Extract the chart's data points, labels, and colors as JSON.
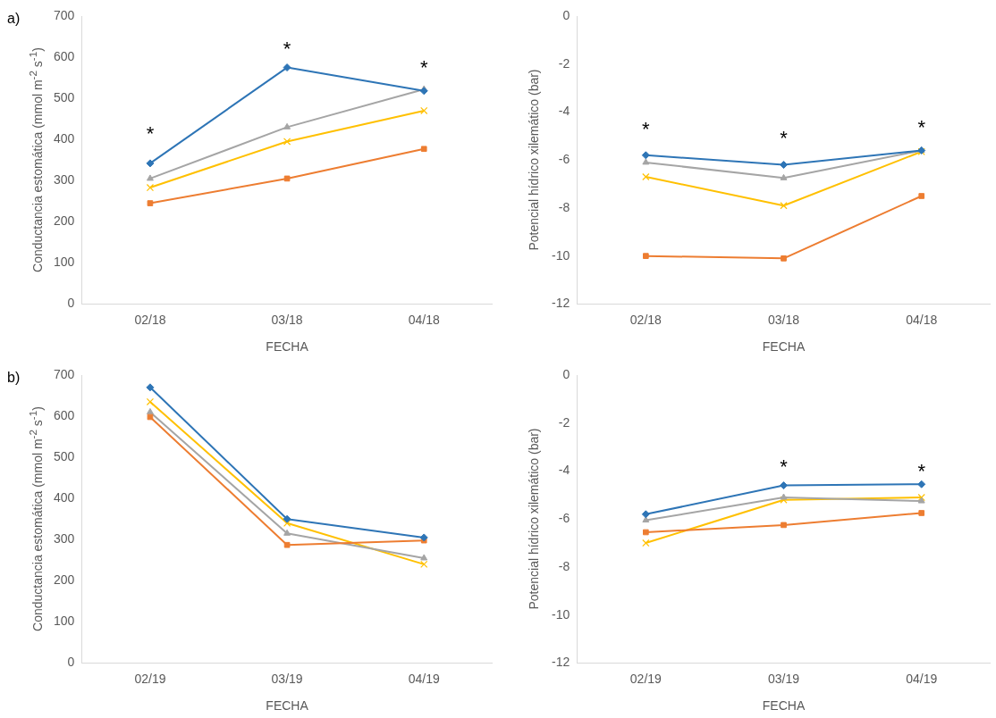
{
  "chart_data": [
    {
      "type": "line",
      "categories": [
        "02/18",
        "03/18",
        "04/18"
      ],
      "xlabel": "FECHA",
      "ylabel": "Conductancia estomática (mmol m$^{-2}$ s$^{-1}$)",
      "ylim": [
        0,
        700
      ],
      "yticks": [
        0,
        100,
        200,
        300,
        400,
        500,
        600,
        700
      ],
      "grid": false,
      "legend": false,
      "series": [
        {
          "color": "#2e75b6",
          "marker": "diamond",
          "values": [
            342,
            575,
            518
          ]
        },
        {
          "color": "#ed7d31",
          "marker": "square",
          "values": [
            245,
            305,
            377
          ]
        },
        {
          "color": "#a5a5a5",
          "marker": "triangle",
          "values": [
            305,
            430,
            522
          ]
        },
        {
          "color": "#ffc000",
          "marker": "cross",
          "values": [
            283,
            395,
            470
          ]
        }
      ],
      "annotations": [
        "a)",
        "*",
        "*",
        "*"
      ]
    },
    {
      "type": "line",
      "categories": [
        "02/18",
        "03/18",
        "04/18"
      ],
      "xlabel": "FECHA",
      "ylabel": "Potencial hídrico xilemático (bar)",
      "ylim": [
        -12,
        0
      ],
      "yticks": [
        -12,
        -10,
        -8,
        -6,
        -4,
        -2,
        0
      ],
      "grid": false,
      "legend": false,
      "series": [
        {
          "color": "#2e75b6",
          "marker": "diamond",
          "values": [
            -5.8,
            -6.2,
            -5.6
          ]
        },
        {
          "color": "#ed7d31",
          "marker": "square",
          "values": [
            -10,
            -10.1,
            -7.5
          ]
        },
        {
          "color": "#a5a5a5",
          "marker": "triangle",
          "values": [
            -6.1,
            -6.75,
            -5.6
          ]
        },
        {
          "color": "#ffc000",
          "marker": "cross",
          "values": [
            -6.7,
            -7.9,
            -5.65
          ]
        }
      ],
      "annotations": [
        "*",
        "*",
        "*"
      ]
    },
    {
      "type": "line",
      "categories": [
        "02/19",
        "03/19",
        "04/19"
      ],
      "xlabel": "FECHA",
      "ylabel": "Conductancia estomática (mmol m$^{-2}$ s$^{-1}$)",
      "ylim": [
        0,
        700
      ],
      "yticks": [
        0,
        100,
        200,
        300,
        400,
        500,
        600,
        700
      ],
      "grid": false,
      "legend": false,
      "series": [
        {
          "color": "#2e75b6",
          "marker": "diamond",
          "values": [
            670,
            350,
            305
          ]
        },
        {
          "color": "#ed7d31",
          "marker": "square",
          "values": [
            598,
            287,
            298
          ]
        },
        {
          "color": "#a5a5a5",
          "marker": "triangle",
          "values": [
            610,
            315,
            255
          ]
        },
        {
          "color": "#ffc000",
          "marker": "cross",
          "values": [
            635,
            340,
            240
          ]
        }
      ],
      "annotations": [
        "b)"
      ]
    },
    {
      "type": "line",
      "categories": [
        "02/19",
        "03/19",
        "04/19"
      ],
      "xlabel": "FECHA",
      "ylabel": "Potencial hídrico xilemático (bar)",
      "ylim": [
        -12,
        0
      ],
      "yticks": [
        -12,
        -10,
        -8,
        -6,
        -4,
        -2,
        0
      ],
      "grid": false,
      "legend": false,
      "series": [
        {
          "color": "#2e75b6",
          "marker": "diamond",
          "values": [
            -5.8,
            -4.6,
            -4.55
          ]
        },
        {
          "color": "#ed7d31",
          "marker": "square",
          "values": [
            -6.55,
            -6.25,
            -5.75
          ]
        },
        {
          "color": "#a5a5a5",
          "marker": "triangle",
          "values": [
            -6.05,
            -5.1,
            -5.25
          ]
        },
        {
          "color": "#ffc000",
          "marker": "cross",
          "values": [
            -7,
            -5.2,
            -5.1
          ]
        }
      ],
      "annotations": [
        "*",
        "*"
      ]
    }
  ]
}
